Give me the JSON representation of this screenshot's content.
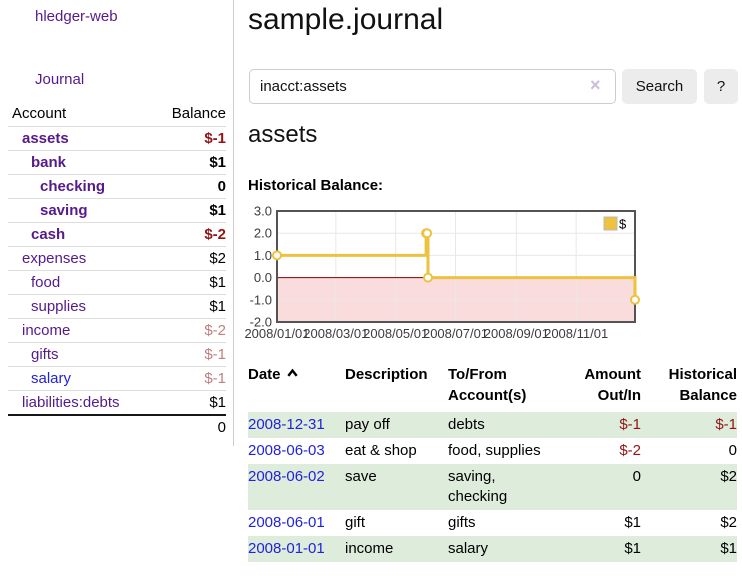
{
  "app_title": "hledger-web",
  "nav": {
    "journal": "Journal"
  },
  "colors": {
    "link_purple": "#551a8b",
    "link_blue": "#2222dd",
    "negative_strong": "#941414",
    "negative_soft": "#c17f7f",
    "row_stripe_green": "#ddecdb",
    "series_gold": "#edc240"
  },
  "accounts_table": {
    "account_header": "Account",
    "balance_header": "Balance",
    "rows": [
      {
        "name": "assets",
        "balance": "$-1",
        "indent": 1,
        "bold": true,
        "neg": "strong"
      },
      {
        "name": "bank",
        "balance": "$1",
        "indent": 2,
        "bold": true
      },
      {
        "name": "checking",
        "balance": "0",
        "indent": 3,
        "bold": true
      },
      {
        "name": "saving",
        "balance": "$1",
        "indent": 3,
        "bold": true
      },
      {
        "name": "cash",
        "balance": "$-2",
        "indent": 2,
        "bold": true,
        "neg": "strong"
      },
      {
        "name": "expenses",
        "balance": "$2",
        "indent": 1
      },
      {
        "name": "food",
        "balance": "$1",
        "indent": 2
      },
      {
        "name": "supplies",
        "balance": "$1",
        "indent": 2
      },
      {
        "name": "income",
        "balance": "$-2",
        "indent": 1,
        "neg": "soft"
      },
      {
        "name": "gifts",
        "balance": "$-1",
        "indent": 2,
        "neg": "soft"
      },
      {
        "name": "salary",
        "balance": "$-1",
        "indent": 2,
        "neg": "soft",
        "link_color": "blue"
      },
      {
        "name": "liabilities:debts",
        "balance": "$1",
        "indent": 1
      }
    ],
    "total": "0"
  },
  "main": {
    "title": "sample.journal",
    "search": {
      "value": "inacct:assets",
      "clear_icon": "×",
      "search_button": "Search",
      "help_button": "?"
    },
    "account_heading": "assets",
    "section_label": "Historical Balance:"
  },
  "chart_data": {
    "type": "line",
    "step": true,
    "title": "Historical Balance",
    "series": [
      {
        "name": "$",
        "color": "#edc240",
        "points": [
          [
            "2008-01-01",
            1
          ],
          [
            "2008-06-01",
            2
          ],
          [
            "2008-06-02",
            2
          ],
          [
            "2008-06-03",
            0
          ],
          [
            "2008-12-31",
            -1
          ]
        ]
      }
    ],
    "x_ticks": [
      "2008/01/01",
      "2008/03/01",
      "2008/05/01",
      "2008/07/01",
      "2008/09/01",
      "2008/11/01"
    ],
    "y_ticks": [
      "3.0",
      "2.0",
      "1.0",
      "0.0",
      "-1.0",
      "-2.0"
    ],
    "xlim": [
      "2008-01-01",
      "2008-12-31"
    ],
    "ylim": [
      -2,
      3
    ],
    "grid": true,
    "grid_color": "#e8e8e8",
    "border_color": "#545454",
    "negative_region_color": "#fbdcdc",
    "zero_line_color": "#8b0000",
    "tick_label_color": "#3c3c3c",
    "legend_label": "$",
    "legend_position": "top-right"
  },
  "register_table": {
    "headers": {
      "date": "Date",
      "description": "Description",
      "tofrom": "To/From Account(s)",
      "amount": "Amount Out/In",
      "historical": "Historical Balance"
    },
    "rows": [
      {
        "date": "2008-12-31",
        "description": "pay off",
        "accounts": "debts",
        "amount": "$-1",
        "balance": "$-1",
        "amount_neg": true,
        "balance_neg": true
      },
      {
        "date": "2008-06-03",
        "description": "eat & shop",
        "accounts": "food, supplies",
        "amount": "$-2",
        "balance": "0",
        "amount_neg": true,
        "balance_neg": false
      },
      {
        "date": "2008-06-02",
        "description": "save",
        "accounts": "saving, checking",
        "amount": "0",
        "balance": "$2",
        "amount_neg": false,
        "balance_neg": false
      },
      {
        "date": "2008-06-01",
        "description": "gift",
        "accounts": "gifts",
        "amount": "$1",
        "balance": "$2",
        "amount_neg": false,
        "balance_neg": false
      },
      {
        "date": "2008-01-01",
        "description": "income",
        "accounts": "salary",
        "amount": "$1",
        "balance": "$1",
        "amount_neg": false,
        "balance_neg": false
      }
    ]
  }
}
